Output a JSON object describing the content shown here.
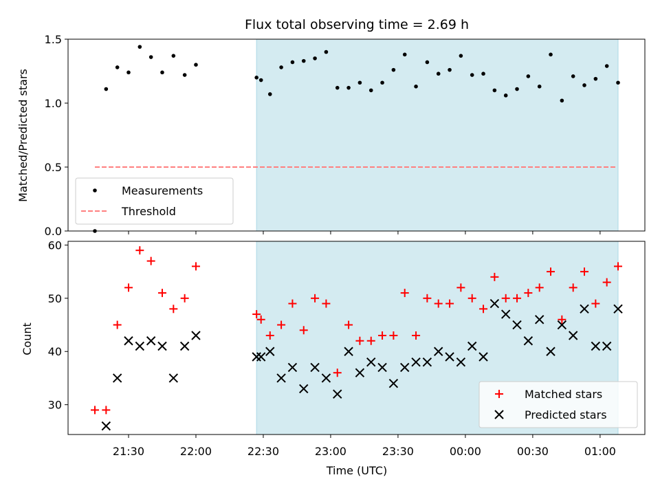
{
  "chart_data": [
    {
      "type": "scatter",
      "title": "Flux total observing time = 2.69 h",
      "xlabel": "",
      "ylabel": "Matched/Predicted stars",
      "ylim": [
        0,
        1.5
      ],
      "yticks": [
        "0.0",
        "0.5",
        "1.0",
        "1.5"
      ],
      "threshold": {
        "name": "Threshold",
        "value": 0.5,
        "x_range": [
          "21:15",
          "01:07"
        ],
        "color": "#ff7f7f"
      },
      "shaded_region": {
        "x_range": [
          "22:27",
          "01:08"
        ],
        "color": "#d4ebf1"
      },
      "series": [
        {
          "name": "Measurements",
          "color": "#000000",
          "points": [
            [
              "21:15",
              0.0
            ],
            [
              "21:20",
              1.11
            ],
            [
              "21:25",
              1.28
            ],
            [
              "21:30",
              1.24
            ],
            [
              "21:35",
              1.44
            ],
            [
              "21:40",
              1.36
            ],
            [
              "21:45",
              1.24
            ],
            [
              "21:50",
              1.37
            ],
            [
              "21:55",
              1.22
            ],
            [
              "22:00",
              1.3
            ],
            [
              "22:27",
              1.2
            ],
            [
              "22:29",
              1.18
            ],
            [
              "22:33",
              1.07
            ],
            [
              "22:38",
              1.28
            ],
            [
              "22:43",
              1.32
            ],
            [
              "22:48",
              1.33
            ],
            [
              "22:53",
              1.35
            ],
            [
              "22:58",
              1.4
            ],
            [
              "23:03",
              1.12
            ],
            [
              "23:08",
              1.12
            ],
            [
              "23:13",
              1.16
            ],
            [
              "23:18",
              1.1
            ],
            [
              "23:23",
              1.16
            ],
            [
              "23:28",
              1.26
            ],
            [
              "23:33",
              1.38
            ],
            [
              "23:38",
              1.13
            ],
            [
              "23:43",
              1.32
            ],
            [
              "23:48",
              1.23
            ],
            [
              "23:53",
              1.26
            ],
            [
              "23:58",
              1.37
            ],
            [
              "00:03",
              1.22
            ],
            [
              "00:08",
              1.23
            ],
            [
              "00:13",
              1.1
            ],
            [
              "00:18",
              1.06
            ],
            [
              "00:23",
              1.11
            ],
            [
              "00:28",
              1.21
            ],
            [
              "00:33",
              1.13
            ],
            [
              "00:38",
              1.38
            ],
            [
              "00:43",
              1.02
            ],
            [
              "00:48",
              1.21
            ],
            [
              "00:53",
              1.14
            ],
            [
              "00:58",
              1.19
            ],
            [
              "01:03",
              1.29
            ],
            [
              "01:08",
              1.16
            ]
          ]
        }
      ],
      "legend": {
        "placement": "lower-left",
        "entries": [
          "Measurements",
          "Threshold"
        ]
      }
    },
    {
      "type": "scatter",
      "title": "",
      "xlabel": "Time (UTC)",
      "ylabel": "Count",
      "ylim": [
        24.4,
        60.7
      ],
      "yticks": [
        "30",
        "40",
        "50",
        "60"
      ],
      "xticks": [
        "21:30",
        "22:00",
        "22:30",
        "23:00",
        "23:30",
        "00:00",
        "00:30",
        "01:00"
      ],
      "shaded_region": {
        "x_range": [
          "22:27",
          "01:08"
        ],
        "color": "#d4ebf1"
      },
      "series": [
        {
          "name": "Matched stars",
          "marker": "plus",
          "color": "#ff0000",
          "points": [
            [
              "21:15",
              29
            ],
            [
              "21:20",
              29
            ],
            [
              "21:25",
              45
            ],
            [
              "21:30",
              52
            ],
            [
              "21:35",
              59
            ],
            [
              "21:40",
              57
            ],
            [
              "21:45",
              51
            ],
            [
              "21:50",
              48
            ],
            [
              "21:55",
              50
            ],
            [
              "22:00",
              56
            ],
            [
              "22:27",
              47
            ],
            [
              "22:29",
              46
            ],
            [
              "22:33",
              43
            ],
            [
              "22:38",
              45
            ],
            [
              "22:43",
              49
            ],
            [
              "22:48",
              44
            ],
            [
              "22:53",
              50
            ],
            [
              "22:58",
              49
            ],
            [
              "23:03",
              36
            ],
            [
              "23:08",
              45
            ],
            [
              "23:13",
              42
            ],
            [
              "23:18",
              42
            ],
            [
              "23:23",
              43
            ],
            [
              "23:28",
              43
            ],
            [
              "23:33",
              51
            ],
            [
              "23:38",
              43
            ],
            [
              "23:43",
              50
            ],
            [
              "23:48",
              49
            ],
            [
              "23:53",
              49
            ],
            [
              "23:58",
              52
            ],
            [
              "00:03",
              50
            ],
            [
              "00:08",
              48
            ],
            [
              "00:13",
              54
            ],
            [
              "00:18",
              50
            ],
            [
              "00:23",
              50
            ],
            [
              "00:28",
              51
            ],
            [
              "00:33",
              52
            ],
            [
              "00:38",
              55
            ],
            [
              "00:43",
              46
            ],
            [
              "00:48",
              52
            ],
            [
              "00:53",
              55
            ],
            [
              "00:58",
              49
            ],
            [
              "01:03",
              53
            ],
            [
              "01:08",
              56
            ]
          ]
        },
        {
          "name": "Predicted stars",
          "marker": "x",
          "color": "#000000",
          "points": [
            [
              "21:20",
              26
            ],
            [
              "21:25",
              35
            ],
            [
              "21:30",
              42
            ],
            [
              "21:35",
              41
            ],
            [
              "21:40",
              42
            ],
            [
              "21:45",
              41
            ],
            [
              "21:50",
              35
            ],
            [
              "21:55",
              41
            ],
            [
              "22:00",
              43
            ],
            [
              "22:27",
              39
            ],
            [
              "22:29",
              39
            ],
            [
              "22:33",
              40
            ],
            [
              "22:38",
              35
            ],
            [
              "22:43",
              37
            ],
            [
              "22:48",
              33
            ],
            [
              "22:53",
              37
            ],
            [
              "22:58",
              35
            ],
            [
              "23:03",
              32
            ],
            [
              "23:08",
              40
            ],
            [
              "23:13",
              36
            ],
            [
              "23:18",
              38
            ],
            [
              "23:23",
              37
            ],
            [
              "23:28",
              34
            ],
            [
              "23:33",
              37
            ],
            [
              "23:38",
              38
            ],
            [
              "23:43",
              38
            ],
            [
              "23:48",
              40
            ],
            [
              "23:53",
              39
            ],
            [
              "23:58",
              38
            ],
            [
              "00:03",
              41
            ],
            [
              "00:08",
              39
            ],
            [
              "00:13",
              49
            ],
            [
              "00:18",
              47
            ],
            [
              "00:23",
              45
            ],
            [
              "00:28",
              42
            ],
            [
              "00:33",
              46
            ],
            [
              "00:38",
              40
            ],
            [
              "00:43",
              45
            ],
            [
              "00:48",
              43
            ],
            [
              "00:53",
              48
            ],
            [
              "00:58",
              41
            ],
            [
              "01:03",
              41
            ],
            [
              "01:08",
              48
            ]
          ]
        }
      ],
      "legend": {
        "placement": "lower-right",
        "entries": [
          "Matched stars",
          "Predicted stars"
        ]
      }
    }
  ]
}
